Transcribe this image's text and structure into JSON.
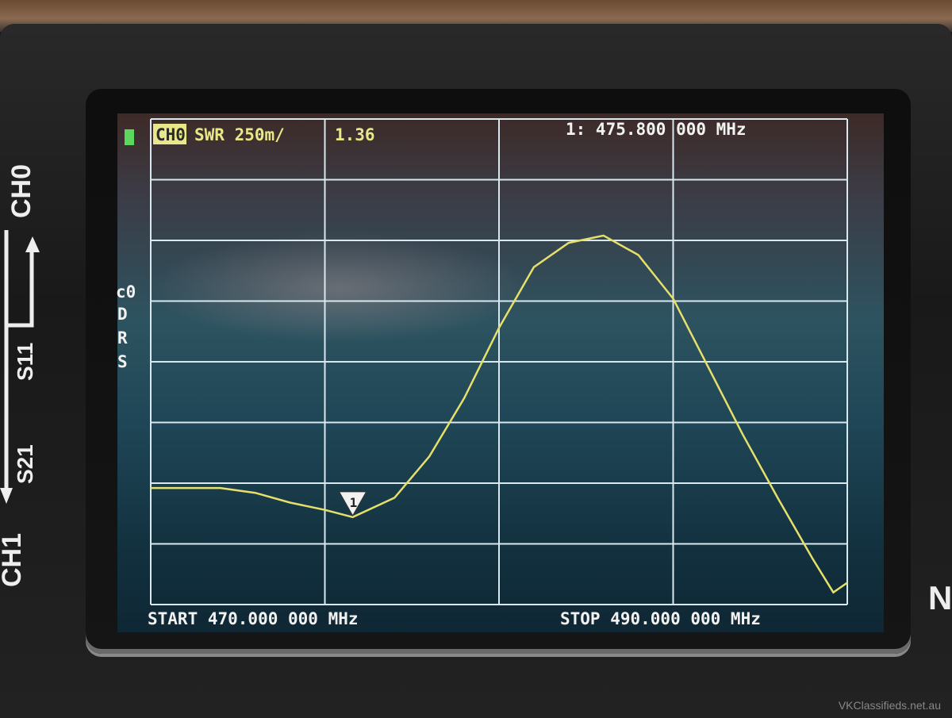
{
  "device": {
    "port_labels": [
      "CH0",
      "S11",
      "S21",
      "CH1"
    ],
    "connector_label": "N",
    "watermark": "VKClassifieds.net.au"
  },
  "header": {
    "channel": "CH0",
    "format": "SWR 250m/",
    "marker_value": "1.36",
    "marker_readout": "1: 475.800 000 MHz"
  },
  "side_legend": [
    "c0",
    "D",
    "R",
    "S"
  ],
  "footer": {
    "start": "START 470.000 000 MHz",
    "stop": "STOP 490.000 000 MHz"
  },
  "colors": {
    "trace": "#e6e06a",
    "grid": "#d8e8ee",
    "header_text": "#e8e88a",
    "battery": "#5cd65c"
  },
  "chart_data": {
    "type": "line",
    "title": "",
    "xlabel": "",
    "ylabel": "",
    "xlim": [
      470,
      490
    ],
    "ylim": [
      1.0,
      3.0
    ],
    "x_divisions": 4,
    "y_divisions": 8,
    "grid": true,
    "marker": {
      "label": "1",
      "x": 475.8,
      "y": 1.36
    },
    "series": [
      {
        "x": [
          470,
          471,
          472,
          473,
          474,
          475,
          475.8,
          477,
          478,
          479,
          480,
          481,
          482,
          483,
          484,
          485,
          486,
          487,
          488,
          489,
          489.6,
          490
        ],
        "y": [
          1.48,
          1.48,
          1.48,
          1.46,
          1.42,
          1.39,
          1.36,
          1.44,
          1.61,
          1.85,
          2.14,
          2.39,
          2.49,
          2.52,
          2.44,
          2.26,
          1.98,
          1.7,
          1.44,
          1.19,
          1.05,
          1.09
        ]
      }
    ]
  }
}
